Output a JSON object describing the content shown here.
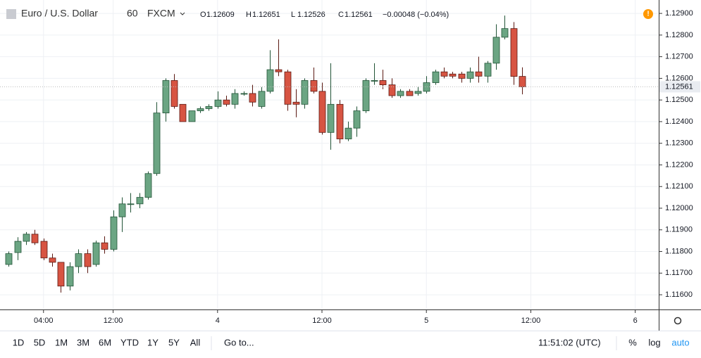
{
  "chart_data": {
    "type": "candlestick",
    "symbol": "Euro / U.S. Dollar",
    "interval": "60",
    "source": "FXCM",
    "ohlc_labels": [
      "O",
      "H",
      "L",
      "C"
    ],
    "change": "−0.00048 (−0.04%)",
    "up_color": "#6ba583",
    "down_color": "#d75442",
    "open": [
      1.1174,
      1.11795,
      1.11847,
      1.1188,
      1.11847,
      1.1177,
      1.1175,
      1.1164,
      1.1173,
      1.1179,
      1.1174,
      1.1184,
      1.1181,
      1.1196,
      1.1202,
      1.1202,
      1.1205,
      1.1216,
      1.1244,
      1.1259,
      1.1248,
      1.124,
      1.1245,
      1.1246,
      1.1247,
      1.125,
      1.1248,
      1.1253,
      1.1253,
      1.1247,
      1.1254,
      1.1264,
      1.1263,
      1.1249,
      1.1248,
      1.1259,
      1.1254,
      1.1235,
      1.1248,
      1.1232,
      1.1237,
      1.1245,
      1.1259,
      1.1259,
      1.1257,
      1.1252,
      1.1254,
      1.1253,
      1.1254,
      1.1258,
      1.1263,
      1.1262,
      1.1262,
      1.126,
      1.1263,
      1.1261,
      1.1267,
      1.1279,
      1.1283,
      1.12609
    ],
    "high": [
      1.118,
      1.11866,
      1.1189,
      1.119,
      1.1186,
      1.1179,
      1.1175,
      1.1175,
      1.1181,
      1.1181,
      1.1185,
      1.1187,
      1.1199,
      1.1205,
      1.1207,
      1.1207,
      1.1217,
      1.1249,
      1.126,
      1.1262,
      1.1248,
      1.1245,
      1.1247,
      1.1248,
      1.1254,
      1.1252,
      1.1255,
      1.1254,
      1.1257,
      1.1256,
      1.1273,
      1.1278,
      1.1264,
      1.1255,
      1.126,
      1.1265,
      1.1258,
      1.1267,
      1.125,
      1.124,
      1.1247,
      1.126,
      1.1267,
      1.1264,
      1.126,
      1.1255,
      1.1255,
      1.1256,
      1.1261,
      1.1264,
      1.1265,
      1.1263,
      1.1263,
      1.1265,
      1.127,
      1.1268,
      1.1285,
      1.1289,
      1.1286,
      1.12651
    ],
    "low": [
      1.1173,
      1.1176,
      1.1183,
      1.1183,
      1.1176,
      1.1173,
      1.1161,
      1.1162,
      1.117,
      1.117,
      1.1173,
      1.1179,
      1.118,
      1.1189,
      1.1198,
      1.12,
      1.1204,
      1.1215,
      1.124,
      1.1246,
      1.124,
      1.124,
      1.1244,
      1.1245,
      1.1246,
      1.1247,
      1.1246,
      1.1252,
      1.1247,
      1.1246,
      1.1253,
      1.1261,
      1.1245,
      1.1242,
      1.1246,
      1.1253,
      1.1234,
      1.1227,
      1.123,
      1.1231,
      1.1233,
      1.1244,
      1.1257,
      1.1255,
      1.1251,
      1.1251,
      1.1252,
      1.1252,
      1.1253,
      1.1257,
      1.126,
      1.126,
      1.1258,
      1.1258,
      1.1258,
      1.1258,
      1.1264,
      1.1278,
      1.1257,
      1.12526
    ],
    "close": [
      1.1179,
      1.11847,
      1.1188,
      1.1184,
      1.1177,
      1.1175,
      1.1164,
      1.1173,
      1.1179,
      1.1173,
      1.1184,
      1.1181,
      1.1196,
      1.1202,
      1.1202,
      1.1205,
      1.1216,
      1.1244,
      1.1259,
      1.1247,
      1.124,
      1.1245,
      1.1246,
      1.1247,
      1.125,
      1.1248,
      1.1253,
      1.1253,
      1.1249,
      1.1254,
      1.1264,
      1.1263,
      1.1248,
      1.1248,
      1.1259,
      1.1254,
      1.1235,
      1.1248,
      1.1232,
      1.1237,
      1.1245,
      1.1259,
      1.1259,
      1.1257,
      1.1252,
      1.1254,
      1.1252,
      1.1254,
      1.1258,
      1.1263,
      1.1261,
      1.1261,
      1.126,
      1.1263,
      1.1261,
      1.1267,
      1.1279,
      1.1283,
      1.12609,
      1.12561
    ],
    "ylim": [
      1.11532,
      1.12962
    ],
    "yticks": [
      {
        "value": 1.116,
        "label": "1.11600"
      },
      {
        "value": 1.117,
        "label": "1.11700"
      },
      {
        "value": 1.118,
        "label": "1.11800"
      },
      {
        "value": 1.119,
        "label": "1.11900"
      },
      {
        "value": 1.12,
        "label": "1.12000"
      },
      {
        "value": 1.121,
        "label": "1.12100"
      },
      {
        "value": 1.122,
        "label": "1.12200"
      },
      {
        "value": 1.123,
        "label": "1.12300"
      },
      {
        "value": 1.124,
        "label": "1.12400"
      },
      {
        "value": 1.125,
        "label": "1.12500"
      },
      {
        "value": 1.126,
        "label": "1.12600"
      },
      {
        "value": 1.127,
        "label": "1.12700"
      },
      {
        "value": 1.128,
        "label": "1.12800"
      },
      {
        "value": 1.129,
        "label": "1.12900"
      }
    ],
    "xlim": [
      -1,
      74.7
    ],
    "xticks": [
      {
        "value": 4,
        "label": "04:00"
      },
      {
        "value": 12,
        "label": "12:00"
      },
      {
        "value": 24,
        "label": "4"
      },
      {
        "value": 36,
        "label": "12:00"
      },
      {
        "value": 48,
        "label": "5"
      },
      {
        "value": 60,
        "label": "12:00"
      },
      {
        "value": 72,
        "label": "6"
      }
    ],
    "grid": true
  },
  "toolbar": {
    "ranges": [
      "1D",
      "5D",
      "1M",
      "3M",
      "6M",
      "YTD",
      "1Y",
      "5Y",
      "All"
    ],
    "goto": "Go to...",
    "clock": "11:51:02 (UTC)",
    "options": [
      "%",
      "log",
      "auto"
    ]
  }
}
